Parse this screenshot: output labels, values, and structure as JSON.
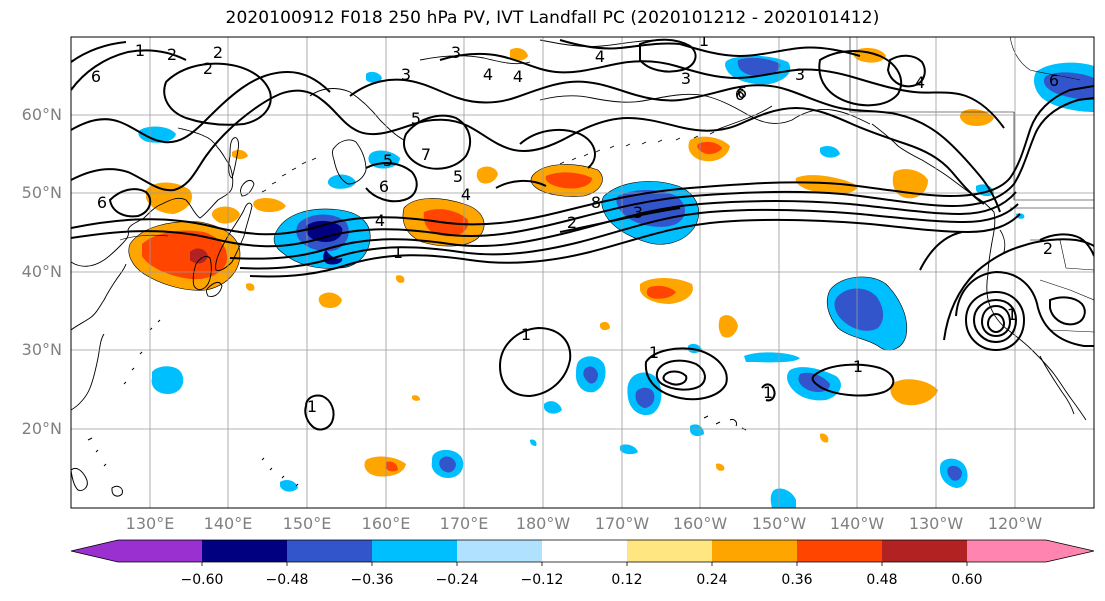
{
  "title": "2020100912 F018 250 hPa PV, IVT Landfall PC (2020101212 - 2020101412)",
  "latitude_labels": [
    "60°N",
    "50°N",
    "40°N",
    "30°N",
    "20°N"
  ],
  "longitude_labels": [
    "130°E",
    "140°E",
    "150°E",
    "160°E",
    "170°E",
    "180°W",
    "170°W",
    "160°W",
    "150°W",
    "140°W",
    "130°W",
    "120°W"
  ],
  "colorbar": {
    "tick_labels": [
      "−0.60",
      "−0.48",
      "−0.36",
      "−0.24",
      "−0.12",
      "0.12",
      "0.24",
      "0.36",
      "0.48",
      "0.60"
    ],
    "colors": [
      "#9b30d0",
      "#000080",
      "#3355cc",
      "#00bfff",
      "#b0e2ff",
      "#ffffff",
      "#ffe680",
      "#ffa500",
      "#ff4500",
      "#b22222",
      "#ff85b0"
    ]
  },
  "contour_labels": [
    "6",
    "1",
    "2",
    "2",
    "3",
    "4",
    "4",
    "3",
    "4",
    "3",
    "6",
    "3",
    "2",
    "1",
    "6",
    "5",
    "5",
    "7",
    "4",
    "6",
    "6",
    "5",
    "4",
    "1",
    "2",
    "8",
    "3",
    "4",
    "2",
    "1",
    "1",
    "1",
    "1",
    "1",
    "1",
    "6"
  ]
}
